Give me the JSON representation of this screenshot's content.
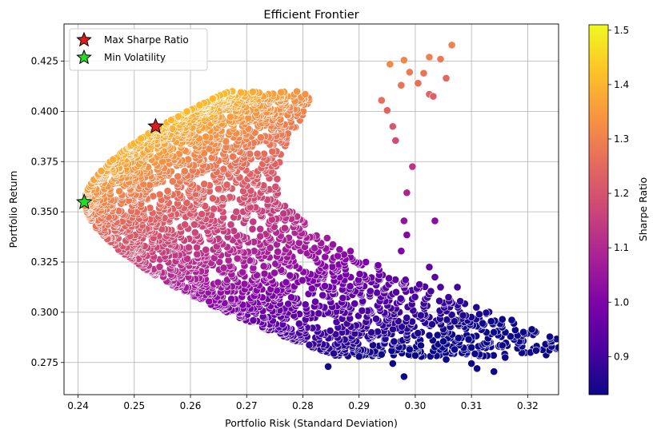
{
  "chart_data": {
    "type": "scatter",
    "title": "Efficient Frontier",
    "xlabel": "Portfolio Risk (Standard Deviation)",
    "ylabel": "Portfolio Return",
    "xlim": [
      0.2375,
      0.3255
    ],
    "ylim": [
      0.259,
      0.4435
    ],
    "x_ticks": [
      "0.24",
      "0.25",
      "0.26",
      "0.27",
      "0.28",
      "0.29",
      "0.30",
      "0.31",
      "0.32"
    ],
    "y_ticks": [
      "0.275",
      "0.300",
      "0.325",
      "0.350",
      "0.375",
      "0.400",
      "0.425"
    ],
    "grid": true,
    "legend_position": "top-left",
    "colormap": "plasma",
    "colorbar": {
      "label": "Sharpe Ratio",
      "range": [
        0.83,
        1.51
      ],
      "ticks": [
        "0.9",
        "1.0",
        "1.1",
        "1.2",
        "1.3",
        "1.4",
        "1.5"
      ]
    },
    "highlights": [
      {
        "name": "Max Sharpe Ratio",
        "x": 0.2538,
        "y": 0.3925,
        "color": "#e31a1c",
        "marker": "star"
      },
      {
        "name": "Min Volatility",
        "x": 0.2411,
        "y": 0.3548,
        "color": "#22dd22",
        "marker": "star"
      }
    ],
    "series": [
      {
        "values": [
          {
            "x": 0.3065,
            "y": 0.433
          },
          {
            "x": 0.3045,
            "y": 0.426
          },
          {
            "x": 0.3025,
            "y": 0.427
          },
          {
            "x": 0.3055,
            "y": 0.4165
          },
          {
            "x": 0.298,
            "y": 0.4255
          },
          {
            "x": 0.2955,
            "y": 0.4235
          },
          {
            "x": 0.299,
            "y": 0.4195
          },
          {
            "x": 0.3005,
            "y": 0.414
          },
          {
            "x": 0.3015,
            "y": 0.419
          },
          {
            "x": 0.3025,
            "y": 0.4085
          },
          {
            "x": 0.3032,
            "y": 0.4075
          },
          {
            "x": 0.2975,
            "y": 0.413
          },
          {
            "x": 0.294,
            "y": 0.4055
          },
          {
            "x": 0.295,
            "y": 0.4005
          },
          {
            "x": 0.296,
            "y": 0.3925
          },
          {
            "x": 0.2965,
            "y": 0.3855
          },
          {
            "x": 0.2995,
            "y": 0.3725
          },
          {
            "x": 0.2985,
            "y": 0.3595
          },
          {
            "x": 0.298,
            "y": 0.3455
          },
          {
            "x": 0.2985,
            "y": 0.3385
          },
          {
            "x": 0.2975,
            "y": 0.3305
          },
          {
            "x": 0.3035,
            "y": 0.3455
          },
          {
            "x": 0.3025,
            "y": 0.3225
          },
          {
            "x": 0.3035,
            "y": 0.3175
          },
          {
            "x": 0.3045,
            "y": 0.3125
          },
          {
            "x": 0.3075,
            "y": 0.3125
          },
          {
            "x": 0.308,
            "y": 0.3055
          },
          {
            "x": 0.3085,
            "y": 0.2985
          },
          {
            "x": 0.307,
            "y": 0.2955
          },
          {
            "x": 0.303,
            "y": 0.294
          },
          {
            "x": 0.301,
            "y": 0.2985
          },
          {
            "x": 0.312,
            "y": 0.2945
          },
          {
            "x": 0.3135,
            "y": 0.2955
          },
          {
            "x": 0.3155,
            "y": 0.2965
          },
          {
            "x": 0.3095,
            "y": 0.2865
          },
          {
            "x": 0.31,
            "y": 0.2825
          },
          {
            "x": 0.307,
            "y": 0.2815
          },
          {
            "x": 0.305,
            "y": 0.2855
          },
          {
            "x": 0.3025,
            "y": 0.2885
          },
          {
            "x": 0.301,
            "y": 0.2835
          },
          {
            "x": 0.3,
            "y": 0.2785
          },
          {
            "x": 0.3055,
            "y": 0.2765
          },
          {
            "x": 0.31,
            "y": 0.2745
          },
          {
            "x": 0.311,
            "y": 0.272
          },
          {
            "x": 0.314,
            "y": 0.2705
          },
          {
            "x": 0.3155,
            "y": 0.2835
          },
          {
            "x": 0.316,
            "y": 0.2775
          },
          {
            "x": 0.3205,
            "y": 0.28
          },
          {
            "x": 0.3215,
            "y": 0.281
          },
          {
            "x": 0.298,
            "y": 0.268
          },
          {
            "x": 0.296,
            "y": 0.2745
          },
          {
            "x": 0.2845,
            "y": 0.273
          },
          {
            "x": 0.29,
            "y": 0.278
          },
          {
            "x": 0.294,
            "y": 0.279
          },
          {
            "x": 0.299,
            "y": 0.2815
          },
          {
            "x": 0.2855,
            "y": 0.2795
          }
        ]
      }
    ]
  }
}
